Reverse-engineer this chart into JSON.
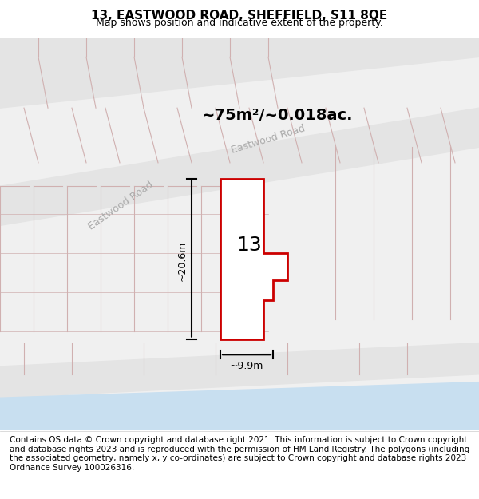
{
  "title": "13, EASTWOOD ROAD, SHEFFIELD, S11 8QE",
  "subtitle": "Map shows position and indicative extent of the property.",
  "footer": "Contains OS data © Crown copyright and database right 2021. This information is subject to Crown copyright and database rights 2023 and is reproduced with the permission of HM Land Registry. The polygons (including the associated geometry, namely x, y co-ordinates) are subject to Crown copyright and database rights 2023 Ordnance Survey 100026316.",
  "area_label": "~75m²/~0.018ac.",
  "width_label": "~9.9m",
  "height_label": "~20.6m",
  "number_label": "13",
  "map_bg": "#f5f5f5",
  "road_color": "#e8e8e8",
  "road_line_color": "#d0b0b0",
  "plot_fill": "#ffffff",
  "plot_edge": "#cc0000",
  "water_color": "#c8dff0",
  "street_name": "Eastwood Road",
  "title_fontsize": 11,
  "subtitle_fontsize": 9,
  "footer_fontsize": 7.5
}
